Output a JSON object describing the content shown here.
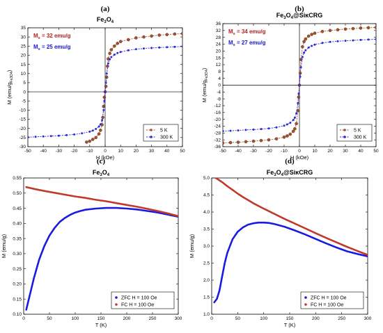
{
  "chart_data": [
    {
      "panel_letter": "(a)",
      "type": "line",
      "title": "Fe3O4",
      "title_main": "Fe",
      "title_sub1": "3",
      "title_mid": "O",
      "title_sub2": "4",
      "xlabel": "H (kOe)",
      "ylabel_main": "M (emu/g",
      "ylabel_sub": "Fe3O4",
      "ylabel_close": ")",
      "xlim": [
        -50,
        50
      ],
      "ylim": [
        -30,
        35
      ],
      "x_ticks": [
        -50,
        -40,
        -30,
        -20,
        -10,
        0,
        10,
        20,
        30,
        40,
        50
      ],
      "y_ticks": [
        -30,
        -25,
        -20,
        -15,
        -10,
        -5,
        0,
        5,
        10,
        15,
        20,
        25,
        30,
        35
      ],
      "annotations": [
        {
          "prefix": "M",
          "sub": "s",
          "text": " = 32 emu/g",
          "color": "#b22222"
        },
        {
          "prefix": "M",
          "sub": "s",
          "text": " = 25 emu/g",
          "color": "#1a1acc"
        }
      ],
      "legend_position": "lower-right",
      "series": [
        {
          "name": "5 K",
          "color": "#a0522d",
          "x": [
            -12,
            -10,
            -8,
            -6,
            -4,
            -3,
            -2,
            -1.5,
            -1,
            -0.5,
            0,
            0.5,
            1,
            1.5,
            2,
            3,
            4,
            6,
            8,
            10,
            15,
            20,
            25,
            30,
            35,
            40,
            45,
            50
          ],
          "y": [
            -27.5,
            -27,
            -26,
            -25,
            -23,
            -21,
            -18,
            -14,
            -8,
            -3,
            0,
            3,
            8,
            14,
            18,
            21,
            23,
            25,
            26.5,
            27.5,
            28.5,
            29.5,
            30,
            30.5,
            31,
            31.3,
            31.6,
            31.8
          ]
        },
        {
          "name": "300 K",
          "color": "#2a2ad8",
          "x": [
            -50,
            -45,
            -40,
            -35,
            -30,
            -25,
            -20,
            -15,
            -10,
            -8,
            -6,
            -4,
            -3,
            -2,
            -1,
            -0.5,
            0,
            0.5,
            1,
            2,
            3,
            4,
            6,
            8,
            10,
            15,
            20,
            25,
            30,
            35,
            40,
            45,
            50
          ],
          "y": [
            -24.8,
            -24.6,
            -24.4,
            -24.2,
            -24,
            -23.7,
            -23.3,
            -22.7,
            -21.8,
            -21.2,
            -20.3,
            -19,
            -17.8,
            -15.5,
            -10,
            -5,
            0,
            5,
            10,
            15.5,
            17.8,
            19,
            20.3,
            21.2,
            21.8,
            22.7,
            23.3,
            23.7,
            24,
            24.2,
            24.4,
            24.6,
            24.8
          ]
        }
      ]
    },
    {
      "panel_letter": "(b)",
      "type": "line",
      "title": "Fe3O4@SiκCRG",
      "title_main": "Fe",
      "title_sub1": "3",
      "title_mid": "O",
      "title_sub2": "4",
      "title_tail": "@SiκCRG",
      "xlabel": "H (kOe)",
      "ylabel_main": "M (emu/g",
      "ylabel_sub": "Fe3O4",
      "ylabel_close": ")",
      "xlim": [
        -50,
        50
      ],
      "ylim": [
        -36,
        36
      ],
      "x_ticks": [
        -50,
        -40,
        -30,
        -20,
        -10,
        0,
        10,
        20,
        30,
        40,
        50
      ],
      "y_ticks": [
        -36,
        -32,
        -28,
        -24,
        -20,
        -16,
        -12,
        -8,
        -4,
        0,
        4,
        8,
        12,
        16,
        20,
        24,
        28,
        32,
        36
      ],
      "annotations": [
        {
          "prefix": "M",
          "sub": "s",
          "text": " = 34 emu/g",
          "color": "#b22222"
        },
        {
          "prefix": "M",
          "sub": "s",
          "text": " = 27 emu/g",
          "color": "#1a1acc"
        }
      ],
      "legend_position": "lower-right",
      "series": [
        {
          "name": "5 K",
          "color": "#a0522d",
          "x": [
            -50,
            -45,
            -40,
            -35,
            -30,
            -25,
            -20,
            -15,
            -10,
            -8,
            -6,
            -4,
            -3,
            -2,
            -1,
            -0.5,
            0,
            0.5,
            1,
            2,
            3,
            4,
            6,
            8,
            10,
            15,
            20,
            25,
            30,
            35,
            40,
            45,
            50
          ],
          "y": [
            -33.8,
            -33.6,
            -33.4,
            -33.1,
            -32.8,
            -32.4,
            -32,
            -31.4,
            -30.4,
            -29.7,
            -28.7,
            -27,
            -25.5,
            -22.5,
            -15,
            -7,
            0,
            7,
            15,
            22.5,
            25.5,
            27,
            28.7,
            29.7,
            30.4,
            31.4,
            32,
            32.4,
            32.8,
            33.1,
            33.4,
            33.6,
            33.8
          ]
        },
        {
          "name": "300 K",
          "color": "#2a2ad8",
          "x": [
            -50,
            -45,
            -40,
            -35,
            -30,
            -25,
            -20,
            -15,
            -10,
            -8,
            -6,
            -4,
            -3,
            -2,
            -1,
            -0.5,
            0,
            0.5,
            1,
            2,
            3,
            4,
            6,
            8,
            10,
            15,
            20,
            25,
            30,
            35,
            40,
            45,
            50
          ],
          "y": [
            -26.9,
            -26.7,
            -26.5,
            -26.2,
            -26,
            -25.7,
            -25.3,
            -24.7,
            -23.7,
            -23,
            -22,
            -20.4,
            -19,
            -16.5,
            -10.5,
            -5,
            0,
            5,
            10.5,
            16.5,
            19,
            20.4,
            22,
            23,
            23.7,
            24.7,
            25.3,
            25.7,
            26,
            26.2,
            26.5,
            26.7,
            26.9
          ]
        }
      ]
    },
    {
      "panel_letter": "(c)",
      "type": "line",
      "title": "Fe3O4",
      "title_main": "Fe",
      "title_sub1": "3",
      "title_mid": "O",
      "title_sub2": "4",
      "xlabel": "T (K)",
      "ylabel_main": "M (emu/g)",
      "xlim": [
        0,
        300
      ],
      "ylim": [
        0.1,
        0.55
      ],
      "x_ticks": [
        0,
        50,
        100,
        150,
        200,
        250,
        300
      ],
      "y_ticks": [
        0.1,
        0.15,
        0.2,
        0.25,
        0.3,
        0.35,
        0.4,
        0.45,
        0.5,
        0.55
      ],
      "y_tick_labels": [
        "0.10",
        "0.15",
        "0.20",
        "0.25",
        "0.30",
        "0.35",
        "0.40",
        "0.45",
        "0.50",
        "0.55"
      ],
      "legend_position": "lower-right",
      "series": [
        {
          "name": "ZFC H = 100 Oe",
          "color": "#1a1ae0",
          "x": [
            5,
            10,
            15,
            20,
            30,
            40,
            50,
            60,
            70,
            80,
            90,
            100,
            110,
            120,
            140,
            160,
            180,
            200,
            220,
            240,
            260,
            280,
            300
          ],
          "y": [
            0.115,
            0.15,
            0.185,
            0.22,
            0.28,
            0.325,
            0.36,
            0.385,
            0.405,
            0.418,
            0.428,
            0.436,
            0.441,
            0.445,
            0.449,
            0.451,
            0.451,
            0.449,
            0.446,
            0.441,
            0.436,
            0.429,
            0.422
          ]
        },
        {
          "name": "FC H = 100 Oe",
          "color": "#c0392b",
          "x": [
            5,
            20,
            40,
            60,
            80,
            100,
            120,
            140,
            160,
            180,
            200,
            220,
            240,
            260,
            280,
            300
          ],
          "y": [
            0.52,
            0.514,
            0.507,
            0.501,
            0.495,
            0.489,
            0.484,
            0.478,
            0.473,
            0.467,
            0.461,
            0.455,
            0.448,
            0.441,
            0.433,
            0.424
          ]
        }
      ]
    },
    {
      "panel_letter": "(d)",
      "type": "line",
      "title": "Fe3O4@SiκCRG",
      "title_main": "Fe",
      "title_sub1": "3",
      "title_mid": "O",
      "title_sub2": "4",
      "title_tail": "@SiκCRG",
      "xlabel": "T (K)",
      "ylabel_main": "M (emu/g)",
      "xlim": [
        0,
        300
      ],
      "ylim": [
        1.0,
        5.0
      ],
      "x_ticks": [
        0,
        50,
        100,
        150,
        200,
        250,
        300
      ],
      "y_ticks": [
        1.0,
        1.5,
        2.0,
        2.5,
        3.0,
        3.5,
        4.0,
        4.5,
        5.0
      ],
      "y_tick_labels": [
        "1.0",
        "1.5",
        "2.0",
        "2.5",
        "3.0",
        "3.5",
        "4.0",
        "4.5",
        "5.0"
      ],
      "legend_position": "lower-right",
      "series": [
        {
          "name": "ZFC H = 100 Oe",
          "color": "#1a1ae0",
          "x": [
            5,
            10,
            15,
            20,
            25,
            30,
            40,
            50,
            60,
            70,
            80,
            90,
            100,
            110,
            120,
            140,
            160,
            180,
            200,
            220,
            240,
            260,
            280,
            300
          ],
          "y": [
            1.35,
            1.45,
            1.7,
            2.1,
            2.5,
            2.8,
            3.2,
            3.42,
            3.55,
            3.63,
            3.67,
            3.69,
            3.69,
            3.68,
            3.65,
            3.57,
            3.46,
            3.34,
            3.21,
            3.08,
            2.96,
            2.85,
            2.77,
            2.7
          ]
        },
        {
          "name": "FC H = 100 Oe",
          "color": "#c0392b",
          "x": [
            5,
            10,
            20,
            30,
            40,
            50,
            60,
            80,
            100,
            120,
            140,
            160,
            180,
            200,
            220,
            240,
            260,
            280,
            300
          ],
          "y": [
            5.02,
            4.98,
            4.88,
            4.76,
            4.65,
            4.54,
            4.44,
            4.26,
            4.1,
            3.95,
            3.8,
            3.66,
            3.52,
            3.38,
            3.24,
            3.11,
            2.98,
            2.86,
            2.74
          ]
        }
      ]
    }
  ]
}
